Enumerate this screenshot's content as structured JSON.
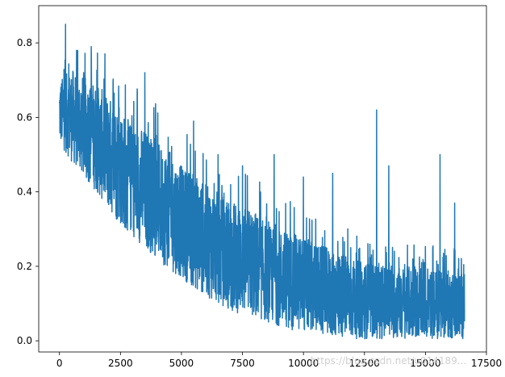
{
  "chart_data": {
    "type": "line",
    "title": "",
    "xlabel": "",
    "ylabel": "",
    "xlim": [
      -850,
      17500
    ],
    "ylim": [
      -0.03,
      0.9
    ],
    "x_ticks": [
      {
        "value": 0,
        "label": "0"
      },
      {
        "value": 2500,
        "label": "2500"
      },
      {
        "value": 5000,
        "label": "5000"
      },
      {
        "value": 7500,
        "label": "7500"
      },
      {
        "value": 10000,
        "label": "10000"
      },
      {
        "value": 12500,
        "label": "12500"
      },
      {
        "value": 15000,
        "label": "15000"
      },
      {
        "value": 17500,
        "label": "17500"
      }
    ],
    "y_ticks": [
      {
        "value": 0.0,
        "label": "0.0"
      },
      {
        "value": 0.2,
        "label": "0.2"
      },
      {
        "value": 0.4,
        "label": "0.4"
      },
      {
        "value": 0.6,
        "label": "0.6"
      },
      {
        "value": 0.8,
        "label": "0.8"
      }
    ],
    "grid": false,
    "series": [
      {
        "color": "#1f77b4",
        "x_range": [
          0,
          16600
        ],
        "envelope": {
          "x": [
            0,
            500,
            1000,
            1500,
            2000,
            2500,
            3000,
            3500,
            4000,
            4500,
            5000,
            5500,
            6000,
            6500,
            7000,
            7500,
            8000,
            8500,
            9000,
            9500,
            10000,
            10500,
            11000,
            11500,
            12000,
            12500,
            13000,
            13500,
            14000,
            14500,
            15000,
            15500,
            16000,
            16600
          ],
          "upper": [
            0.7,
            0.73,
            0.71,
            0.69,
            0.66,
            0.62,
            0.58,
            0.57,
            0.53,
            0.51,
            0.47,
            0.45,
            0.42,
            0.4,
            0.38,
            0.36,
            0.35,
            0.31,
            0.3,
            0.29,
            0.28,
            0.26,
            0.25,
            0.24,
            0.22,
            0.21,
            0.21,
            0.2,
            0.2,
            0.2,
            0.19,
            0.19,
            0.19,
            0.18
          ],
          "lower": [
            0.53,
            0.48,
            0.44,
            0.4,
            0.35,
            0.31,
            0.28,
            0.25,
            0.22,
            0.19,
            0.17,
            0.14,
            0.12,
            0.1,
            0.08,
            0.07,
            0.06,
            0.05,
            0.04,
            0.03,
            0.02,
            0.02,
            0.01,
            0.01,
            0.005,
            0.005,
            0.005,
            0.005,
            0.005,
            0.005,
            0.005,
            0.005,
            0.005,
            0.005
          ]
        },
        "spikes": [
          {
            "x": 250,
            "y": 0.85
          },
          {
            "x": 700,
            "y": 0.78
          },
          {
            "x": 1300,
            "y": 0.79
          },
          {
            "x": 3500,
            "y": 0.72
          },
          {
            "x": 5500,
            "y": 0.59
          },
          {
            "x": 6500,
            "y": 0.5
          },
          {
            "x": 7500,
            "y": 0.47
          },
          {
            "x": 8800,
            "y": 0.5
          },
          {
            "x": 10000,
            "y": 0.44
          },
          {
            "x": 11200,
            "y": 0.45
          },
          {
            "x": 13000,
            "y": 0.62
          },
          {
            "x": 13500,
            "y": 0.47
          },
          {
            "x": 15600,
            "y": 0.5
          },
          {
            "x": 16200,
            "y": 0.37
          }
        ]
      }
    ]
  },
  "watermark": "https://blog.csdn.net/u014189..."
}
